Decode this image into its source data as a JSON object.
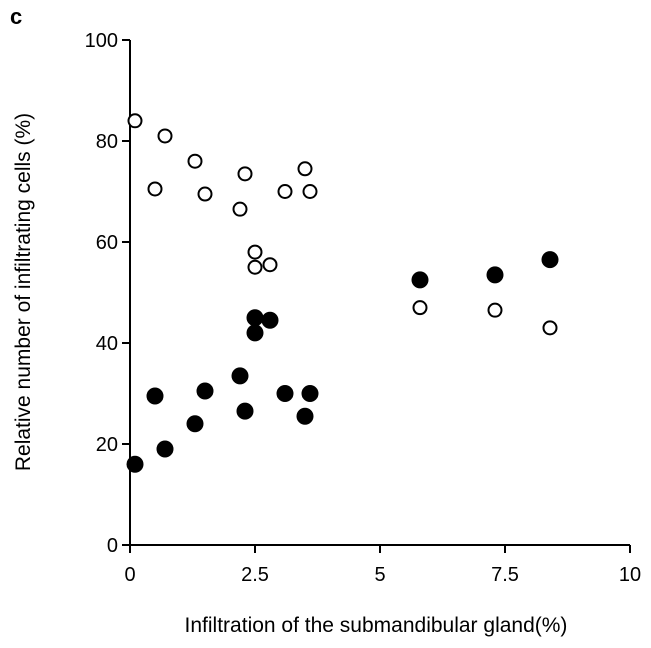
{
  "panel_label": "c",
  "chart_data": {
    "type": "scatter",
    "title": "",
    "xlabel": "Infiltration of the submandibular gland(%)",
    "ylabel": "Relative number of infiltrating cells (%)",
    "xlim": [
      0,
      10
    ],
    "ylim": [
      0,
      100
    ],
    "xticks": [
      0,
      2.5,
      5,
      7.5,
      10
    ],
    "xtick_labels": [
      "0",
      "2.5",
      "5",
      "7.5",
      "10"
    ],
    "yticks": [
      0,
      20,
      40,
      60,
      80,
      100
    ],
    "ytick_labels": [
      "0",
      "20",
      "40",
      "60",
      "80",
      "100"
    ],
    "grid": false,
    "series": [
      {
        "marker": "open-circle",
        "color": "#000000",
        "points": [
          [
            0.1,
            84
          ],
          [
            0.7,
            81
          ],
          [
            0.5,
            70.5
          ],
          [
            1.3,
            76
          ],
          [
            1.5,
            69.5
          ],
          [
            2.2,
            66.5
          ],
          [
            2.3,
            73.5
          ],
          [
            3.5,
            74.5
          ],
          [
            3.1,
            70
          ],
          [
            3.6,
            70
          ],
          [
            2.5,
            58
          ],
          [
            2.5,
            55
          ],
          [
            2.8,
            55.5
          ],
          [
            5.8,
            47
          ],
          [
            7.3,
            46.5
          ],
          [
            8.4,
            43
          ]
        ]
      },
      {
        "marker": "filled-circle",
        "color": "#000000",
        "points": [
          [
            0.1,
            16
          ],
          [
            0.7,
            19
          ],
          [
            0.5,
            29.5
          ],
          [
            1.3,
            24
          ],
          [
            1.5,
            30.5
          ],
          [
            2.2,
            33.5
          ],
          [
            2.3,
            26.5
          ],
          [
            3.5,
            25.5
          ],
          [
            3.1,
            30
          ],
          [
            3.6,
            30
          ],
          [
            2.5,
            45
          ],
          [
            2.5,
            42
          ],
          [
            2.8,
            44.5
          ],
          [
            5.8,
            52.5
          ],
          [
            7.3,
            53.5
          ],
          [
            8.4,
            56.5
          ]
        ]
      }
    ]
  }
}
